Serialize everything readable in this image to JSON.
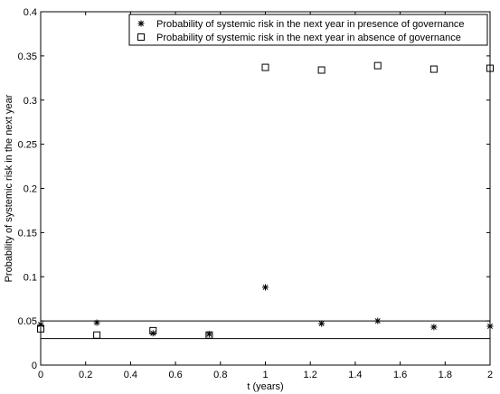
{
  "chart_data": {
    "type": "scatter",
    "xlabel": "t (years)",
    "ylabel": "Probability of  systemic risk in the next year",
    "xlim": [
      0,
      2
    ],
    "ylim": [
      0,
      0.4
    ],
    "x_ticks": [
      0,
      0.2,
      0.4,
      0.6,
      0.8,
      1,
      1.2,
      1.4,
      1.6,
      1.8,
      2
    ],
    "x_tick_labels": [
      "0",
      "0.2",
      "0.4",
      "0.6",
      "0.8",
      "1",
      "1.2",
      "1.4",
      "1.6",
      "1.8",
      "2"
    ],
    "y_ticks": [
      0,
      0.05,
      0.1,
      0.15,
      0.2,
      0.25,
      0.3,
      0.35,
      0.4
    ],
    "y_tick_labels": [
      "0",
      "0.05",
      "0.1",
      "0.15",
      "0.2",
      "0.25",
      "0.3",
      "0.35",
      "0.4"
    ],
    "legend_position": "top-right",
    "grid": false,
    "reference_lines": [
      0.05,
      0.03
    ],
    "series": [
      {
        "name": "Probability of  systemic risk in the next year in presence of governance",
        "marker": "asterisk",
        "x": [
          0,
          0.25,
          0.5,
          0.75,
          1,
          1.25,
          1.5,
          1.75,
          2
        ],
        "y": [
          0.046,
          0.048,
          0.036,
          0.035,
          0.088,
          0.047,
          0.05,
          0.043,
          0.044
        ]
      },
      {
        "name": "Probability of  systemic risk in the next year in absence of governance",
        "marker": "square",
        "x": [
          0,
          0.25,
          0.5,
          0.75,
          1,
          1.25,
          1.5,
          1.75,
          2
        ],
        "y": [
          0.041,
          0.034,
          0.039,
          0.034,
          0.337,
          0.334,
          0.339,
          0.335,
          0.336
        ]
      }
    ]
  }
}
